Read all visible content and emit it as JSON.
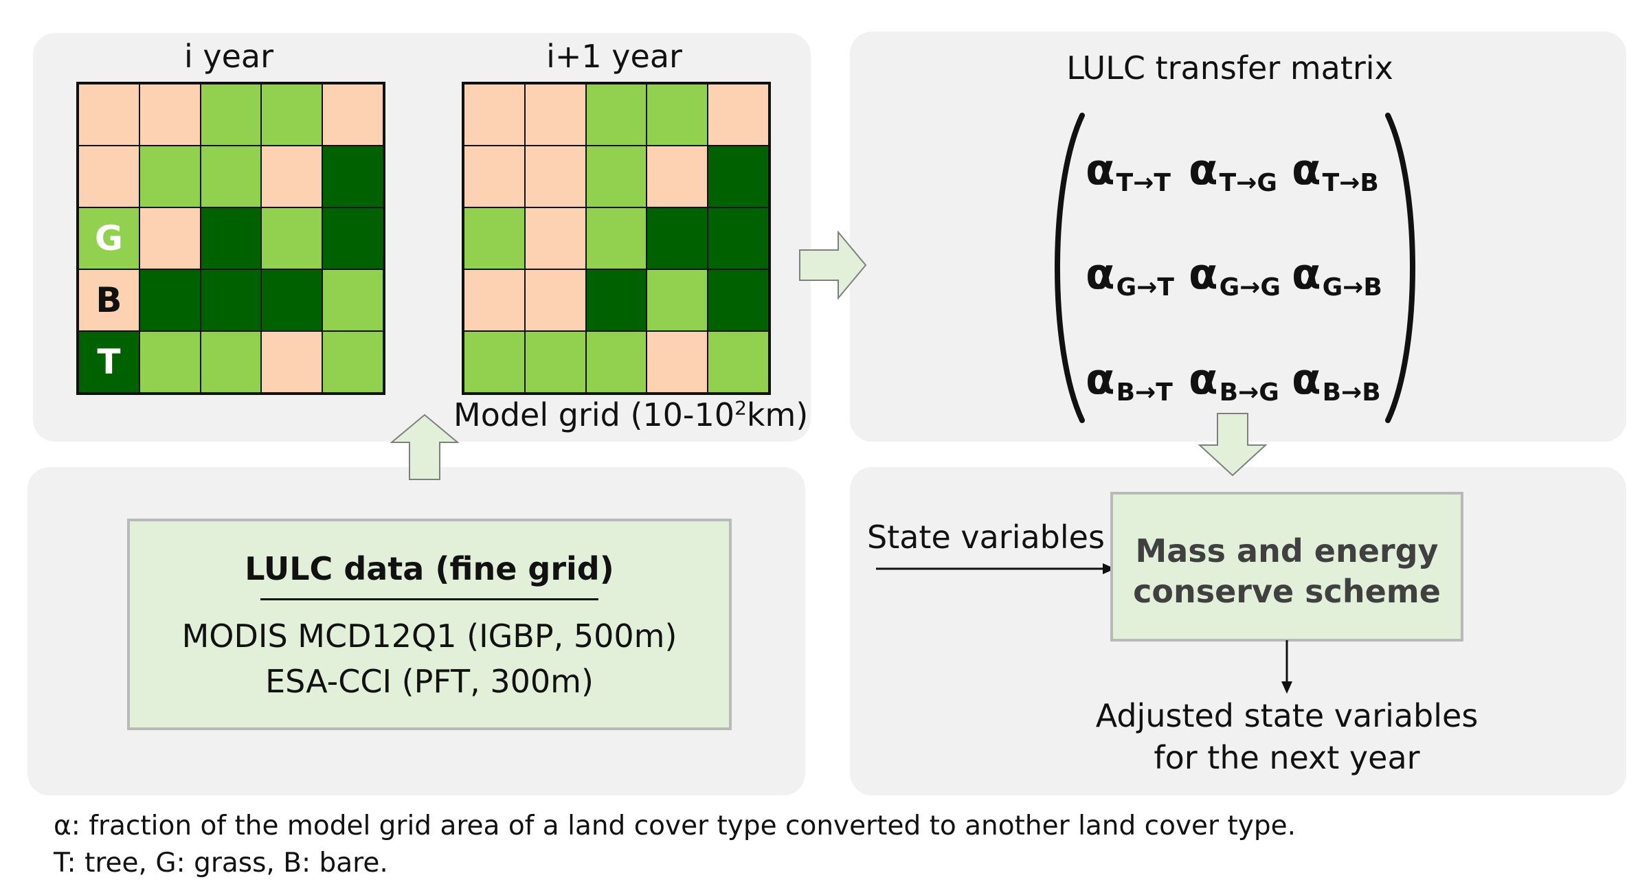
{
  "left_top": {
    "grid_i_title": "i year",
    "grid_i1_title": "i+1 year",
    "model_grid_label_main": "Model grid (10-10",
    "model_grid_label_sup": "2",
    "model_grid_label_end": "km)",
    "legend": {
      "G": "G",
      "B": "B",
      "T": "T"
    },
    "colors": {
      "bare": "#fdd2b2",
      "grass": "#92d050",
      "tree": "#006100"
    },
    "grid_i": [
      [
        "B",
        "B",
        "G",
        "G",
        "B"
      ],
      [
        "B",
        "G",
        "G",
        "B",
        "T"
      ],
      [
        "G",
        "B",
        "T",
        "G",
        "T"
      ],
      [
        "B",
        "T",
        "T",
        "T",
        "G"
      ],
      [
        "T",
        "G",
        "G",
        "B",
        "G"
      ]
    ],
    "grid_i1": [
      [
        "B",
        "B",
        "G",
        "G",
        "B"
      ],
      [
        "B",
        "B",
        "G",
        "B",
        "T"
      ],
      [
        "G",
        "B",
        "G",
        "T",
        "T"
      ],
      [
        "B",
        "B",
        "T",
        "G",
        "T"
      ],
      [
        "G",
        "G",
        "G",
        "B",
        "G"
      ]
    ]
  },
  "right_top": {
    "title": "LULC transfer matrix",
    "alpha": "α",
    "matrix": [
      [
        "T→T",
        "T→G",
        "T→B"
      ],
      [
        "G→T",
        "G→G",
        "G→B"
      ],
      [
        "B→T",
        "B→G",
        "B→B"
      ]
    ]
  },
  "left_bottom": {
    "box_title": "LULC data (fine grid)",
    "line1": "MODIS MCD12Q1 (IGBP, 500m)",
    "line2": "ESA-CCI (PFT, 300m)"
  },
  "right_bottom": {
    "input_label": "State variables",
    "box_line1": "Mass and energy",
    "box_line2": "conserve scheme",
    "output_line1": "Adjusted state variables",
    "output_line2": "for the next year"
  },
  "footnote": {
    "line1": "α: fraction of the model grid area of a land cover type converted to another land cover type.",
    "line2": "T: tree, G: grass, B: bare."
  },
  "arrow_color": "#e2efd9"
}
